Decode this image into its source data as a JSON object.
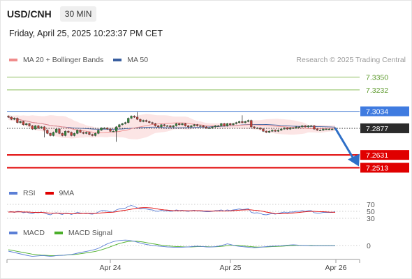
{
  "header": {
    "symbol": "USD/CNH",
    "timeframe": "30 MIN",
    "datetime": "Friday, April 25, 2025 10:23:37 PM CET"
  },
  "legend": {
    "ma20": {
      "label": "MA 20 + Bollinger Bands",
      "color": "#f08c8c"
    },
    "ma50": {
      "label": "MA 50",
      "color": "#3a5fa0"
    },
    "credit": "Research © 2025 Trading Central"
  },
  "rsi_legend": {
    "rsi": "RSI",
    "ma9": "9MA"
  },
  "macd_legend": {
    "macd": "MACD",
    "signal": "MACD Signal"
  },
  "chart_data": {
    "type": "candlestick",
    "x_ticks": [
      "Apr 24",
      "Apr 25",
      "Apr 26"
    ],
    "ylim": [
      7.24,
      7.345
    ],
    "levels": [
      {
        "value": 7.335,
        "label": "7.3350",
        "kind": "resistance_soft",
        "color": "#8bbd5a"
      },
      {
        "value": 7.3232,
        "label": "7.3232",
        "kind": "resistance_soft",
        "color": "#8bbd5a"
      },
      {
        "value": 7.3034,
        "label": "7.3034",
        "kind": "pivot",
        "color": "#4a7fd4"
      },
      {
        "value": 7.2877,
        "label": "7.2877",
        "kind": "last_price",
        "color": "#2b2b2b"
      },
      {
        "value": 7.2631,
        "label": "7.2631",
        "kind": "support",
        "color": "#e00000"
      },
      {
        "value": 7.2513,
        "label": "7.2513",
        "kind": "support",
        "color": "#e00000"
      }
    ],
    "close": [
      7.298,
      7.296,
      7.297,
      7.293,
      7.294,
      7.291,
      7.292,
      7.29,
      7.287,
      7.29,
      7.288,
      7.289,
      7.286,
      7.283,
      7.281,
      7.284,
      7.287,
      7.283,
      7.281,
      7.285,
      7.284,
      7.281,
      7.283,
      7.286,
      7.284,
      7.283,
      7.284,
      7.282,
      7.281,
      7.283,
      7.286,
      7.288,
      7.288,
      7.287,
      7.285,
      7.285,
      7.289,
      7.291,
      7.292,
      7.293,
      7.297,
      7.299,
      7.298,
      7.296,
      7.294,
      7.295,
      7.294,
      7.293,
      7.292,
      7.29,
      7.289,
      7.291,
      7.29,
      7.29,
      7.289,
      7.29,
      7.292,
      7.291,
      7.292,
      7.29,
      7.289,
      7.29,
      7.291,
      7.29,
      7.29,
      7.289,
      7.288,
      7.288,
      7.289,
      7.29,
      7.29,
      7.292,
      7.29,
      7.292,
      7.291,
      7.292,
      7.293,
      7.294,
      7.293,
      7.294,
      7.295,
      7.289,
      7.288,
      7.288,
      7.287,
      7.285,
      7.284,
      7.285,
      7.286,
      7.285,
      7.286,
      7.287,
      7.288,
      7.287,
      7.288,
      7.288,
      7.289,
      7.289,
      7.29,
      7.289,
      7.29,
      7.29,
      7.287,
      7.286,
      7.286,
      7.287,
      7.287,
      7.287,
      7.287,
      7.288
    ],
    "rsi": {
      "ticks": [
        70,
        50,
        30
      ],
      "ylim": [
        20,
        80
      ],
      "values": [
        48,
        49,
        47,
        50,
        49,
        46,
        48,
        45,
        43,
        47,
        46,
        48,
        45,
        42,
        40,
        44,
        46,
        43,
        41,
        45,
        44,
        41,
        44,
        47,
        45,
        44,
        45,
        43,
        42,
        44,
        48,
        52,
        52,
        51,
        48,
        48,
        54,
        57,
        58,
        59,
        64,
        67,
        64,
        60,
        57,
        59,
        57,
        55,
        54,
        51,
        50,
        53,
        51,
        52,
        50,
        51,
        54,
        52,
        53,
        51,
        50,
        52,
        53,
        51,
        51,
        50,
        49,
        49,
        50,
        52,
        52,
        54,
        51,
        54,
        52,
        54,
        55,
        57,
        55,
        56,
        58,
        47,
        45,
        46,
        44,
        41,
        40,
        42,
        44,
        42,
        44,
        46,
        48,
        46,
        48,
        48,
        50,
        50,
        52,
        50,
        52,
        52,
        46,
        45,
        45,
        47,
        47,
        47,
        47,
        49
      ]
    },
    "macd": {
      "ticks": [
        0
      ],
      "ylim": [
        -0.009,
        0.006
      ],
      "macd": [
        -0.004,
        -0.0045,
        -0.005,
        -0.0055,
        -0.006,
        -0.0065,
        -0.007,
        -0.0074,
        -0.0078,
        -0.0076,
        -0.0074,
        -0.0072,
        -0.0073,
        -0.0075,
        -0.0078,
        -0.0076,
        -0.0072,
        -0.0071,
        -0.0071,
        -0.0068,
        -0.0066,
        -0.0064,
        -0.006,
        -0.0055,
        -0.005,
        -0.0046,
        -0.0042,
        -0.0038,
        -0.0033,
        -0.0028,
        -0.002,
        -0.001,
        0.0002,
        0.0012,
        0.002,
        0.0028,
        0.0033,
        0.0036,
        0.0038,
        0.0039,
        0.0038,
        0.0034,
        0.003,
        0.0024,
        0.0018,
        0.0012,
        0.0008,
        0.0004,
        0.0001,
        -0.0002,
        -0.0004,
        -0.0006,
        -0.0008,
        -0.001,
        -0.0011,
        -0.0012,
        -0.0012,
        -0.0012,
        -0.0012,
        -0.0011,
        -0.001,
        -0.0008,
        -0.0006,
        -0.0005,
        -0.0006,
        -0.0008,
        -0.001,
        -0.0011,
        -0.001,
        -0.0008,
        -0.0005,
        0.0,
        0.0005,
        0.0012,
        0.0008,
        0.0002,
        -0.0003,
        -0.0006,
        -0.0008,
        -0.001,
        -0.0012,
        -0.0014,
        -0.0015,
        -0.0014,
        -0.0012,
        -0.001,
        -0.0008,
        -0.0006,
        -0.0005,
        -0.0004,
        -0.0003,
        -0.0002,
        0.0,
        0.0002,
        0.0004,
        0.0005,
        0.0004,
        0.0002,
        0.0001,
        0.0,
        -0.0001,
        -0.0002,
        -0.0002,
        -0.0002,
        -0.0002,
        -0.0002,
        -0.0002,
        -0.0002,
        -0.0002,
        -0.0002
      ],
      "signal": [
        -0.003,
        -0.0034,
        -0.0038,
        -0.0042,
        -0.0046,
        -0.005,
        -0.0054,
        -0.0058,
        -0.0062,
        -0.0065,
        -0.0067,
        -0.0069,
        -0.007,
        -0.0071,
        -0.0072,
        -0.0072,
        -0.0072,
        -0.0071,
        -0.007,
        -0.0069,
        -0.0067,
        -0.0066,
        -0.0064,
        -0.0062,
        -0.0059,
        -0.0056,
        -0.0053,
        -0.005,
        -0.0046,
        -0.0042,
        -0.0037,
        -0.0031,
        -0.0024,
        -0.0017,
        -0.0009,
        -0.0001,
        0.0007,
        0.0014,
        0.002,
        0.0025,
        0.0029,
        0.0031,
        0.0031,
        0.003,
        0.0028,
        0.0025,
        0.0021,
        0.0017,
        0.0013,
        0.001,
        0.0006,
        0.0003,
        0.0,
        -0.0002,
        -0.0004,
        -0.0006,
        -0.0007,
        -0.0008,
        -0.0009,
        -0.001,
        -0.001,
        -0.001,
        -0.0009,
        -0.0008,
        -0.0008,
        -0.0008,
        -0.0008,
        -0.0009,
        -0.0009,
        -0.0009,
        -0.0008,
        -0.0006,
        -0.0004,
        -0.0001,
        0.0001,
        0.0002,
        0.0001,
        0.0,
        -0.0002,
        -0.0004,
        -0.0006,
        -0.0008,
        -0.001,
        -0.0011,
        -0.0011,
        -0.0011,
        -0.001,
        -0.0009,
        -0.0008,
        -0.0007,
        -0.0006,
        -0.0005,
        -0.0004,
        -0.0002,
        -0.0001,
        0.0,
        0.0001,
        0.0001,
        0.0001,
        0.0001,
        0.0,
        0.0,
        -0.0001,
        -0.0001,
        -0.0001,
        -0.0001,
        -0.0001,
        -0.0001,
        -0.0001,
        -0.0001
      ]
    }
  }
}
